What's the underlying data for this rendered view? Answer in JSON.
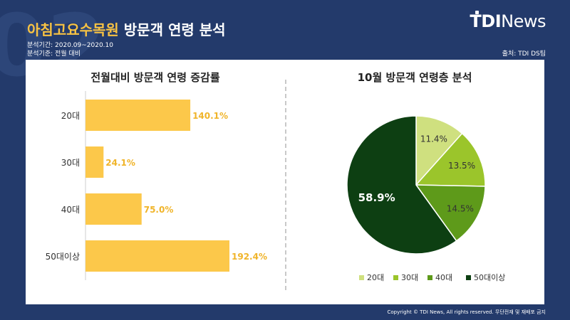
{
  "header": {
    "title_highlight": "아침고요수목원",
    "title_rest": "방문객 연령 분석",
    "period": "분석기간: 2020.09~2020.10",
    "basis": "분석기준: 전월 대비",
    "source": "출처: TDI DS팀",
    "logo_bold": "TDI",
    "logo_light": "News",
    "bg_number": "02"
  },
  "footer": {
    "copyright": "Copyright © TDI News, All rights reserved. 무단전재 및 재배포 금지"
  },
  "chart_data": [
    {
      "type": "bar",
      "orientation": "horizontal",
      "title": "전월대비 방문객 연령 증감률",
      "categories": [
        "20대",
        "30대",
        "40대",
        "50대이상"
      ],
      "values": [
        140.1,
        24.1,
        75.0,
        192.4
      ],
      "data_labels": [
        "140.1%",
        "24.1%",
        "75.0%",
        "192.4%"
      ],
      "color": "#fcc84a",
      "label_color": "#f0b429",
      "grid": false
    },
    {
      "type": "pie",
      "title": "10월 방문객 연령층 분석",
      "categories": [
        "20대",
        "30대",
        "40대",
        "50대이상"
      ],
      "values": [
        11.4,
        13.5,
        14.5,
        58.9
      ],
      "data_labels": [
        "11.4%",
        "13.5%",
        "14.5%",
        "58.9%"
      ],
      "colors": [
        "#cfe07f",
        "#9bc52b",
        "#5e9a1a",
        "#0d3f12"
      ],
      "legend_position": "bottom"
    }
  ]
}
